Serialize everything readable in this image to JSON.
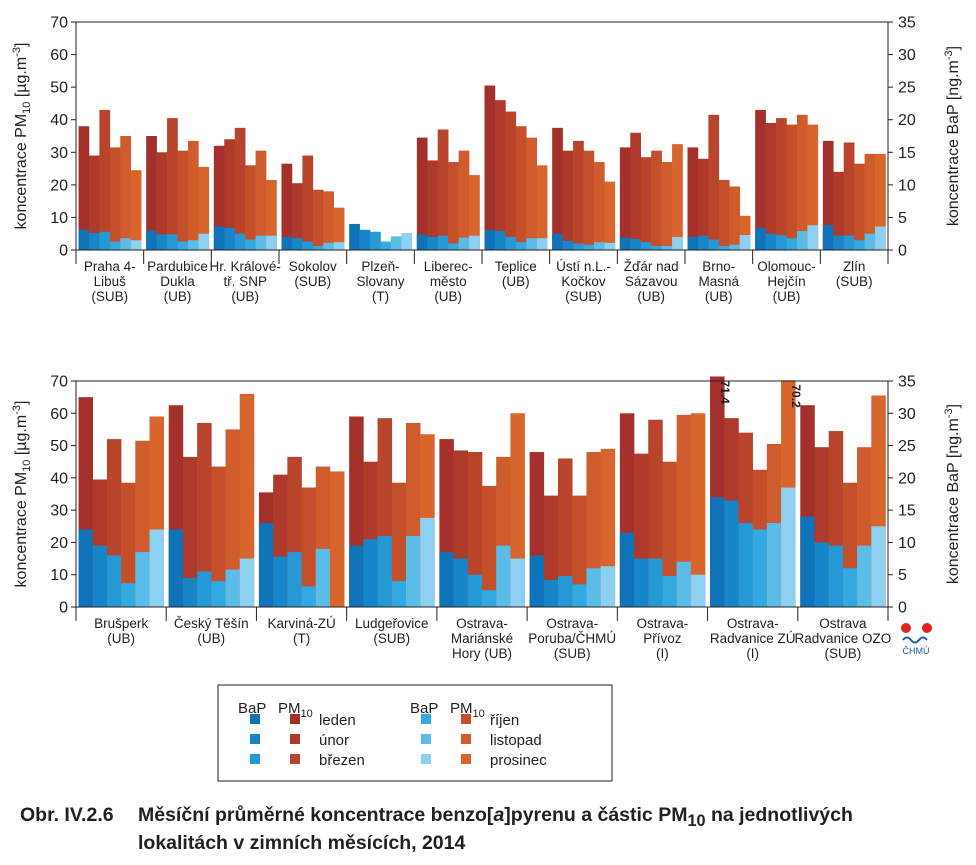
{
  "colors": {
    "bap": [
      "#0e73b9",
      "#1786c8",
      "#2598d6",
      "#32a9e1",
      "#5cbce8",
      "#8dd0f2"
    ],
    "pm": [
      "#a4302b",
      "#ae3a2b",
      "#b8442b",
      "#c4502b",
      "#cf5c2c",
      "#d8652c"
    ]
  },
  "legend": {
    "bap_label": "BaP",
    "pm_label": "PM",
    "pm_sub": "10",
    "months_left": [
      "leden",
      "únor",
      "březen"
    ],
    "months_right": [
      "říjen",
      "listopad",
      "prosinec"
    ]
  },
  "caption": {
    "number": "Obr. IV.2.6",
    "text_before": "Měsíční průměrné koncentrace benzo[",
    "text_italic": "a",
    "text_mid": "]pyrenu a částic PM",
    "text_sub": "10",
    "text_after": " na jednotlivých",
    "line2": "lokalitách v zimních měsících, 2014"
  },
  "logo": {
    "text": "ČHMÚ"
  },
  "chart_data": [
    {
      "type": "bar",
      "months": [
        "leden",
        "únor",
        "březen",
        "říjen",
        "listopad",
        "prosinec"
      ],
      "ylabel_left": {
        "main": "koncentrace PM",
        "sub": "10",
        "unit": " [µg.m",
        "sup": "-3",
        "end": "]"
      },
      "ylabel_right": {
        "main": "koncentrace BaP [ng.m",
        "sup": "-3",
        "end": "]"
      },
      "ylim_left": [
        0,
        70
      ],
      "ylim_right": [
        0,
        35
      ],
      "yticks_left": [
        0,
        10,
        20,
        30,
        40,
        50,
        60,
        70
      ],
      "yticks_right": [
        0,
        5,
        10,
        15,
        20,
        25,
        30,
        35
      ],
      "stations": [
        {
          "label": [
            "Praha 4-",
            "Libuš",
            "(SUB)"
          ],
          "pm10": [
            38,
            29,
            43,
            31.5,
            35,
            24.5
          ],
          "bap": [
            3.1,
            2.6,
            2.8,
            1.3,
            1.8,
            1.5
          ]
        },
        {
          "label": [
            "Pardubice",
            "Dukla",
            "(UB)"
          ],
          "pm10": [
            35,
            30,
            40.5,
            30.5,
            33.5,
            25.5
          ],
          "bap": [
            3.0,
            2.4,
            2.4,
            1.3,
            1.5,
            2.5
          ]
        },
        {
          "label": [
            "Hr. Králové-",
            "tř. SNP",
            "(UB)"
          ],
          "pm10": [
            32,
            34,
            37.5,
            26,
            30.5,
            21.5
          ],
          "bap": [
            3.6,
            3.4,
            2.5,
            1.6,
            2.2,
            2.2
          ]
        },
        {
          "label": [
            "Sokolov",
            "(SUB)"
          ],
          "pm10": [
            26.5,
            20.5,
            29,
            18.5,
            18,
            13
          ],
          "bap": [
            2.0,
            1.8,
            1.3,
            0.6,
            1.1,
            1.2
          ]
        },
        {
          "label": [
            "Plzeň-",
            "Slovany",
            "(T)"
          ],
          "pm10": [
            null,
            null,
            null,
            null,
            null,
            null
          ],
          "bap": [
            4.0,
            3.1,
            2.8,
            1.3,
            2.1,
            2.6
          ]
        },
        {
          "label": [
            "Liberec-",
            "město",
            "(UB)"
          ],
          "pm10": [
            34.5,
            27.5,
            37,
            27,
            30.5,
            23
          ],
          "bap": [
            2.4,
            2.0,
            2.2,
            1.0,
            1.9,
            2.2
          ]
        },
        {
          "label": [
            "Teplice",
            "(UB)"
          ],
          "pm10": [
            50.5,
            46,
            42.5,
            38,
            34.5,
            26
          ],
          "bap": [
            3.1,
            2.9,
            2.0,
            1.2,
            1.8,
            1.8
          ]
        },
        {
          "label": [
            "Ústí n.L.-",
            "Kočkov",
            "(SUB)"
          ],
          "pm10": [
            37.5,
            30.5,
            33.5,
            30.5,
            27,
            21
          ],
          "bap": [
            2.5,
            1.4,
            1.0,
            0.8,
            1.2,
            1.1
          ]
        },
        {
          "label": [
            "Žďár nad",
            "Sázavou",
            "(UB)"
          ],
          "pm10": [
            31.5,
            36,
            28.5,
            30.5,
            27,
            32.5
          ],
          "bap": [
            1.9,
            1.7,
            1.2,
            0.6,
            0.6,
            2.0
          ]
        },
        {
          "label": [
            "Brno-",
            "Masná",
            "(UB)"
          ],
          "pm10": [
            31.5,
            28,
            41.5,
            21.5,
            19.5,
            10.5
          ],
          "bap": [
            2.0,
            2.2,
            1.6,
            0.6,
            0.8,
            2.3
          ]
        },
        {
          "label": [
            "Olomouc-",
            "Hejčín",
            "(UB)"
          ],
          "pm10": [
            43,
            39,
            40.5,
            38.5,
            41.5,
            38.5
          ],
          "bap": [
            3.4,
            2.5,
            2.3,
            1.8,
            2.9,
            3.8
          ]
        },
        {
          "label": [
            "Zlín",
            "(SUB)"
          ],
          "pm10": [
            33.5,
            24,
            33,
            26.5,
            29.5,
            29.5
          ],
          "bap": [
            3.8,
            2.2,
            2.2,
            1.5,
            2.5,
            3.6
          ]
        }
      ]
    },
    {
      "type": "bar",
      "months": [
        "leden",
        "únor",
        "březen",
        "říjen",
        "listopad",
        "prosinec"
      ],
      "ylabel_left": {
        "main": "koncentrace PM",
        "sub": "10",
        "unit": " [µg.m",
        "sup": "-3",
        "end": "]"
      },
      "ylabel_right": {
        "main": "koncentrace BaP [ng.m",
        "sup": "-3",
        "end": "]"
      },
      "ylim_left": [
        0,
        70
      ],
      "ylim_right": [
        0,
        35
      ],
      "yticks_left": [
        0,
        10,
        20,
        30,
        40,
        50,
        60,
        70
      ],
      "yticks_right": [
        0,
        5,
        10,
        15,
        20,
        25,
        30,
        35
      ],
      "stations": [
        {
          "label": [
            "Brušperk",
            "(UB)"
          ],
          "pm10": [
            65,
            39.5,
            52,
            38.5,
            51.5,
            59
          ],
          "bap": [
            12,
            9.5,
            8,
            3.7,
            8.5,
            12
          ]
        },
        {
          "label": [
            "Český Těšín",
            "(UB)"
          ],
          "pm10": [
            62.5,
            46.5,
            57,
            43.5,
            55,
            66
          ],
          "bap": [
            12,
            4.5,
            5.5,
            4,
            5.8,
            7.5
          ]
        },
        {
          "label": [
            "Karviná-ZÚ",
            "(T)"
          ],
          "pm10": [
            35.5,
            41,
            46.5,
            37,
            43.5,
            42
          ],
          "bap": [
            13,
            7.8,
            8.5,
            3.2,
            9,
            null
          ]
        },
        {
          "label": [
            "Ludgeřovice",
            "(SUB)"
          ],
          "pm10": [
            59,
            45,
            58.5,
            38.5,
            57,
            53.5
          ],
          "bap": [
            9.5,
            10.5,
            11,
            4,
            11,
            13.8
          ]
        },
        {
          "label": [
            "Ostrava-",
            "Mariánské",
            "Hory (UB)"
          ],
          "pm10": [
            52,
            48.5,
            48,
            37.5,
            46.5,
            60
          ],
          "bap": [
            8.5,
            7.5,
            5,
            2.6,
            9.5,
            7.5
          ]
        },
        {
          "label": [
            "Ostrava-",
            "Poruba/ČHMÚ",
            "(SUB)"
          ],
          "pm10": [
            48,
            34.5,
            46,
            34.5,
            48,
            49
          ],
          "bap": [
            8,
            4.2,
            4.8,
            3.5,
            6,
            6.3
          ]
        },
        {
          "label": [
            "Ostrava-",
            "Přívoz",
            "(I)"
          ],
          "pm10": [
            60,
            47.5,
            58,
            45,
            59.5,
            60
          ],
          "bap": [
            11.5,
            7.5,
            7.5,
            4.8,
            7,
            5
          ]
        },
        {
          "label": [
            "Ostrava-",
            "Radvanice ZÚ",
            "(I)"
          ],
          "pm10": [
            71.4,
            58.5,
            54,
            42.5,
            50.5,
            70.2
          ],
          "bap": [
            17,
            16.5,
            13,
            12,
            13,
            18.5
          ],
          "data_labels": {
            "0": "71.4",
            "5": "70.2"
          }
        },
        {
          "label": [
            "Ostrava",
            "Radvanice OZO",
            "(SUB)"
          ],
          "pm10": [
            62.5,
            49.5,
            54.5,
            38.5,
            49.5,
            65.5
          ],
          "bap": [
            14,
            10,
            9.5,
            6,
            9.5,
            12.5
          ]
        }
      ]
    }
  ]
}
